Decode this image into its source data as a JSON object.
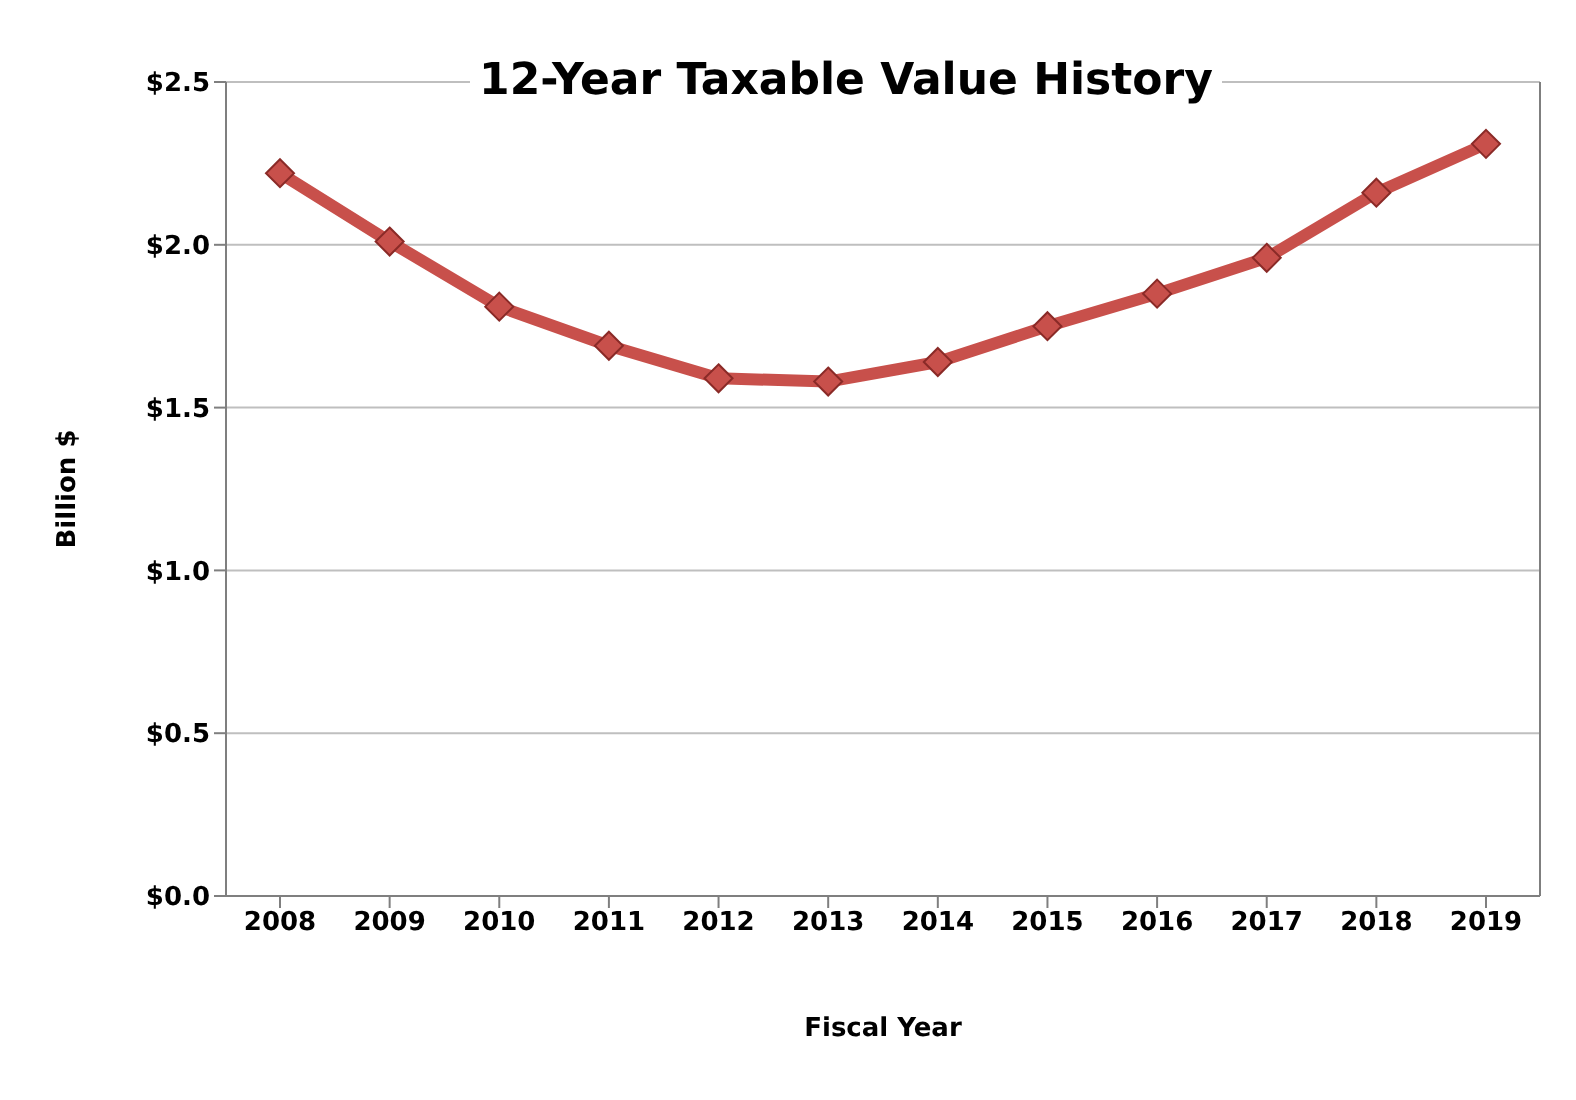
{
  "chart_data": {
    "type": "line",
    "title": "12-Year Taxable Value History",
    "xlabel": "Fiscal Year",
    "ylabel": "Billion $",
    "categories": [
      "2008",
      "2009",
      "2010",
      "2011",
      "2012",
      "2013",
      "2014",
      "2015",
      "2016",
      "2017",
      "2018",
      "2019"
    ],
    "series": [
      {
        "color": "#c8504b",
        "values": [
          2.22,
          2.01,
          1.81,
          1.69,
          1.59,
          1.58,
          1.64,
          1.75,
          1.85,
          1.96,
          2.16,
          2.31
        ]
      }
    ],
    "ylim": [
      0,
      2.5
    ],
    "yticks": [
      {
        "value": 0,
        "label": "$0.0"
      },
      {
        "value": 0.5,
        "label": "$0.5"
      },
      {
        "value": 1,
        "label": "$1.0"
      },
      {
        "value": 1.5,
        "label": "$1.5"
      },
      {
        "value": 2,
        "label": "$2.0"
      },
      {
        "value": 2.5,
        "label": "$2.5"
      }
    ],
    "grid": "y",
    "marker": "diamond",
    "line_style": "solid"
  }
}
